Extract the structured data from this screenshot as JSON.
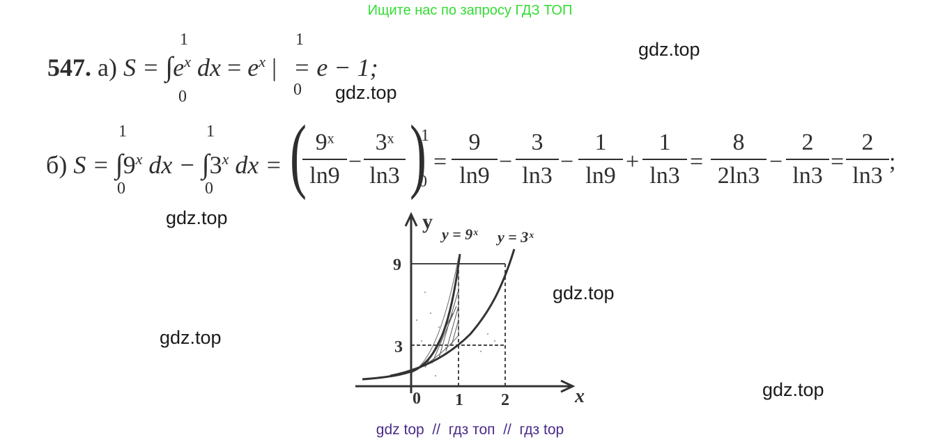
{
  "banner": "Ищите нас по запросу ГДЗ ТОП",
  "watermarks": [
    "gdz.top",
    "gdz.top",
    "gdz.top",
    "gdz.top",
    "gdz.top",
    "gdz.top"
  ],
  "footer": "gdz top  //  гдз топ  //  гдз top",
  "problem": {
    "number": "547.",
    "part_a": {
      "label": "а)",
      "lhs": "S =",
      "integrand": "e",
      "integrand_exp": "x",
      "dx": "dx",
      "eq": "=",
      "antideriv": "e",
      "antideriv_exp": "x",
      "result": "= e − 1;",
      "upper": "1",
      "lower": "0",
      "sub_upper": "1",
      "sub_lower": "0"
    },
    "part_b": {
      "label": "б)",
      "lhs": "S =",
      "int1": "9",
      "int1_exp": "x",
      "dx1": "dx −",
      "int2": "3",
      "int2_exp": "x",
      "dx2": "dx =",
      "upper1": "1",
      "lower1": "0",
      "upper2": "1",
      "lower2": "0",
      "sub_upper": "1",
      "sub_lower": "0",
      "fractions": [
        {
          "num": "9ˣ",
          "den": "ln9"
        },
        {
          "num": "3ˣ",
          "den": "ln3"
        },
        {
          "num": "9",
          "den": "ln9"
        },
        {
          "num": "3",
          "den": "ln3"
        },
        {
          "num": "1",
          "den": "ln9"
        },
        {
          "num": "1",
          "den": "ln3"
        },
        {
          "num": "8",
          "den": "2ln3"
        },
        {
          "num": "2",
          "den": "ln3"
        },
        {
          "num": "2",
          "den": "ln3"
        }
      ],
      "operators": [
        "−",
        "=",
        "−",
        "−",
        "+",
        "=",
        "−",
        "="
      ],
      "end": ";"
    }
  },
  "graph": {
    "axis_y": "y",
    "axis_x": "x",
    "curve1_label": "y = 9ˣ",
    "curve2_label": "y = 3ˣ",
    "y_ticks": [
      "9",
      "3"
    ],
    "x_ticks": [
      "0",
      "1",
      "2"
    ]
  }
}
